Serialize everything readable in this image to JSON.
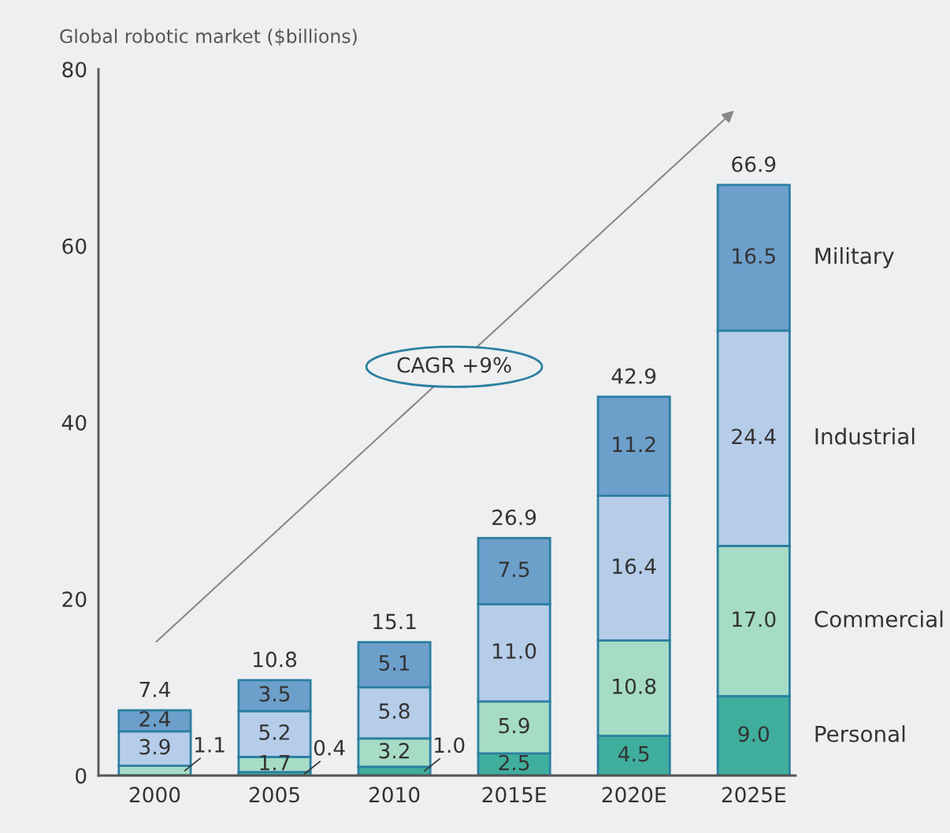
{
  "chart_data": {
    "type": "bar",
    "stacked": true,
    "ylabel": "Global robotic market ($billions)",
    "categories": [
      "2000",
      "2005",
      "2010",
      "2015E",
      "2020E",
      "2025E"
    ],
    "series": [
      {
        "name": "Personal",
        "color": "#3fae9c",
        "values": [
          null,
          0.4,
          1.0,
          2.5,
          4.5,
          9.0
        ],
        "value_labels": [
          null,
          "0.4",
          "1.0",
          "2.5",
          "4.5",
          "9.0"
        ]
      },
      {
        "name": "Commercial",
        "color": "#a6dcc6",
        "values": [
          1.1,
          1.7,
          3.2,
          5.9,
          10.8,
          17.0
        ],
        "value_labels": [
          "1.1",
          "1.7",
          "3.2",
          "5.9",
          "10.8",
          "17.0"
        ]
      },
      {
        "name": "Industrial",
        "color": "#b6cdea",
        "values": [
          3.9,
          5.2,
          5.8,
          11.0,
          16.4,
          24.4
        ],
        "value_labels": [
          "3.9",
          "5.2",
          "5.8",
          "11.0",
          "16.4",
          "24.4"
        ]
      },
      {
        "name": "Military",
        "color": "#6d9fcb",
        "values": [
          2.4,
          3.5,
          5.1,
          7.5,
          11.2,
          16.5
        ],
        "value_labels": [
          "2.4",
          "3.5",
          "5.1",
          "7.5",
          "11.2",
          "16.5"
        ]
      }
    ],
    "totals": [
      "7.4",
      "10.8",
      "15.1",
      "26.9",
      "42.9",
      "66.9"
    ],
    "ylim": [
      0,
      80
    ],
    "yticks": [
      0,
      20,
      40,
      60,
      80
    ],
    "grid": false,
    "annotations": [
      "CAGR +9%"
    ]
  }
}
